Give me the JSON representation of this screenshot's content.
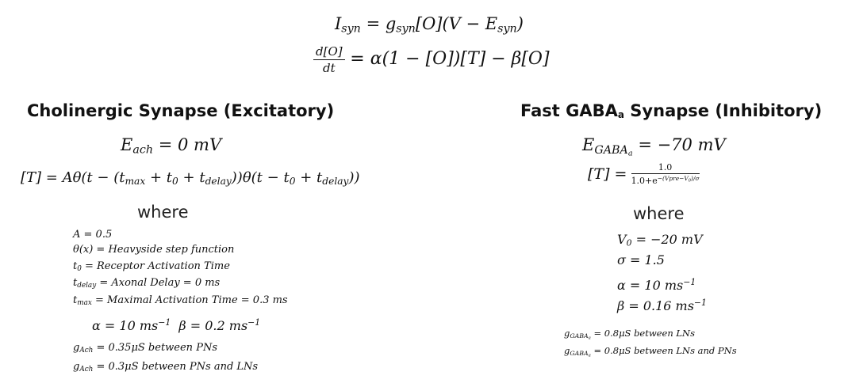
{
  "header": {
    "eq1_lhs": "I",
    "eq1_lhs_sub": "syn",
    "eq1_rhs_a": "g",
    "eq1_rhs_a_sub": "syn",
    "eq1_rhs_b": "[O](V − E",
    "eq1_rhs_b_sub": "syn",
    "eq1_rhs_c": ")",
    "eq2_num": "d[O]",
    "eq2_den": "dt",
    "eq2_rhs": "= α(1 − [O])[T] − β[O]"
  },
  "left": {
    "title": "Cholinergic Synapse (Excitatory)",
    "e_ach_sym": "E",
    "e_ach_sub": "ach",
    "e_ach_val": "= 0 mV",
    "t_eq_a": "[T] = Aθ(t − (t",
    "t_eq_sub1": "max",
    "t_eq_b": " + t",
    "t_eq_sub2": "0",
    "t_eq_c": " + t",
    "t_eq_sub3": "delay",
    "t_eq_d": "))θ(t − t",
    "t_eq_sub4": "0",
    "t_eq_e": " + t",
    "t_eq_sub5": "delay",
    "t_eq_f": "))",
    "where": "where",
    "defs": {
      "a": "A = 0.5",
      "theta": "θ(x) = Heavyside step function",
      "t0_sym": "t",
      "t0_sub": "0",
      "t0_rest": " = Receptor Activation Time",
      "tdelay_sym": "t",
      "tdelay_sub": "delay",
      "tdelay_rest": " = Axonal Delay = 0 ms",
      "tmax_sym": "t",
      "tmax_sub": "max",
      "tmax_rest": " = Maximal Activation Time = 0.3 ms"
    },
    "rates_a": "α = 10 ms",
    "rates_a_sup": "−1",
    "rates_b": "β = 0.2 ms",
    "rates_b_sup": "−1",
    "g1_sym": "g",
    "g1_sub": "Ach",
    "g1_rest": " = 0.35μS between PNs",
    "g2_sym": "g",
    "g2_sub": "Ach",
    "g2_rest": " = 0.3μS between PNs and LNs"
  },
  "right": {
    "title_a": "Fast GABA",
    "title_sub": "a",
    "title_b": " Synapse (Inhibitory)",
    "e_sym": "E",
    "e_sub": "GABA",
    "e_subsub": "a",
    "e_val": "= −70 mV",
    "t_lhs": "[T] =",
    "t_num": "1.0",
    "t_den_a": "1.0+e",
    "t_den_sup": "−(Vpre−V",
    "t_den_sup_sub": "0",
    "t_den_sup_end": ")/σ",
    "where": "where",
    "v0_sym": "V",
    "v0_sub": "0",
    "v0_rest": " = −20 mV",
    "sigma": "σ = 1.5",
    "alpha": "α = 10 ms",
    "alpha_sup": "−1",
    "beta": "β = 0.16 ms",
    "beta_sup": "−1",
    "g1_sym": "g",
    "g1_sub": "GABA",
    "g1_subsub": "a",
    "g1_rest": " = 0.8μS between LNs",
    "g2_sym": "g",
    "g2_sub": "GABA",
    "g2_subsub": "a",
    "g2_rest": " = 0.8μS between LNs and PNs"
  }
}
